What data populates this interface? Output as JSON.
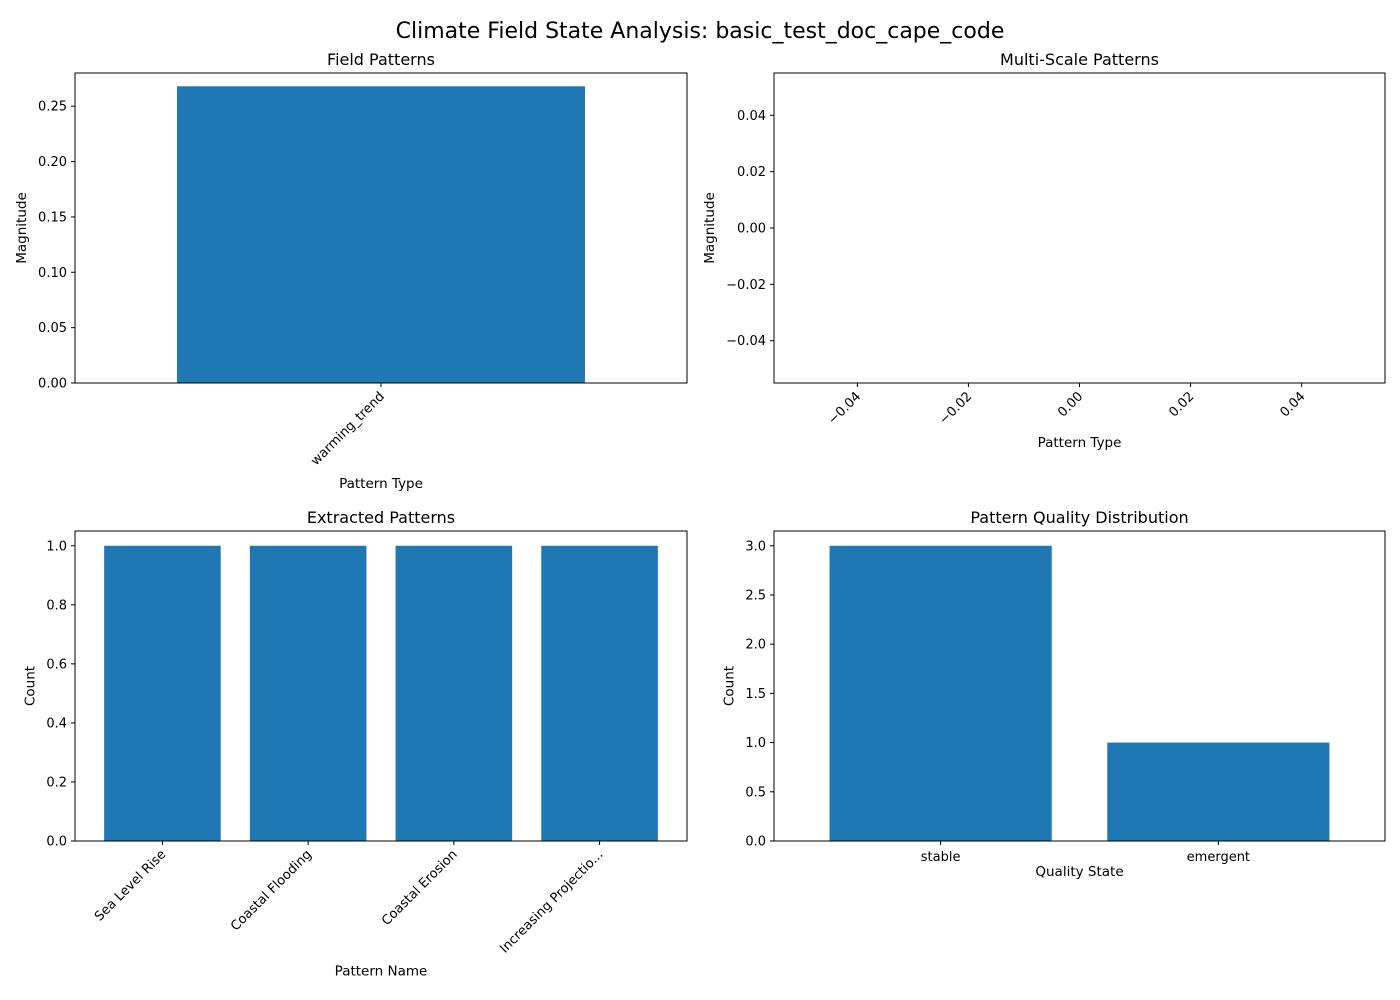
{
  "suptitle": "Climate Field State Analysis: basic_test_doc_cape_code",
  "bar_color": "#1f77b4",
  "chart_data": [
    {
      "id": "field-patterns",
      "type": "bar",
      "title": "Field Patterns",
      "xlabel": "Pattern Type",
      "ylabel": "Magnitude",
      "categories": [
        "warming_trend"
      ],
      "values": [
        0.268
      ],
      "ylim": [
        0,
        0.28
      ],
      "yticks": [
        0.0,
        0.05,
        0.1,
        0.15,
        0.2,
        0.25
      ],
      "ytick_labels": [
        "0.00",
        "0.05",
        "0.10",
        "0.15",
        "0.20",
        "0.25"
      ],
      "xtick_rotation": -45,
      "grid": false,
      "legend": "none"
    },
    {
      "id": "multi-scale-patterns",
      "type": "bar",
      "title": "Multi-Scale Patterns",
      "xlabel": "Pattern Type",
      "ylabel": "Magnitude",
      "categories": [],
      "values": [],
      "xlim": [
        -0.055,
        0.055
      ],
      "ylim": [
        -0.055,
        0.055
      ],
      "xticks": [
        -0.04,
        -0.02,
        0.0,
        0.02,
        0.04
      ],
      "xtick_labels": [
        "−0.04",
        "−0.02",
        "0.00",
        "0.02",
        "0.04"
      ],
      "yticks": [
        -0.04,
        -0.02,
        0.0,
        0.02,
        0.04
      ],
      "ytick_labels": [
        "−0.04",
        "−0.02",
        "0.00",
        "0.02",
        "0.04"
      ],
      "xtick_rotation": -45,
      "grid": false,
      "legend": "none"
    },
    {
      "id": "extracted-patterns",
      "type": "bar",
      "title": "Extracted Patterns",
      "xlabel": "Pattern Name",
      "ylabel": "Count",
      "categories": [
        "Sea Level Rise",
        "Coastal Flooding",
        "Coastal Erosion",
        "Increasing Projectio..."
      ],
      "values": [
        1,
        1,
        1,
        1
      ],
      "ylim": [
        0,
        1.05
      ],
      "yticks": [
        0.0,
        0.2,
        0.4,
        0.6,
        0.8,
        1.0
      ],
      "ytick_labels": [
        "0.0",
        "0.2",
        "0.4",
        "0.6",
        "0.8",
        "1.0"
      ],
      "xtick_rotation": -45,
      "grid": false,
      "legend": "none"
    },
    {
      "id": "pattern-quality-distribution",
      "type": "bar",
      "title": "Pattern Quality Distribution",
      "xlabel": "Quality State",
      "ylabel": "Count",
      "categories": [
        "stable",
        "emergent"
      ],
      "values": [
        3,
        1
      ],
      "ylim": [
        0,
        3.15
      ],
      "yticks": [
        0.0,
        0.5,
        1.0,
        1.5,
        2.0,
        2.5,
        3.0
      ],
      "ytick_labels": [
        "0.0",
        "0.5",
        "1.0",
        "1.5",
        "2.0",
        "2.5",
        "3.0"
      ],
      "xtick_rotation": 0,
      "grid": false,
      "legend": "none"
    }
  ]
}
